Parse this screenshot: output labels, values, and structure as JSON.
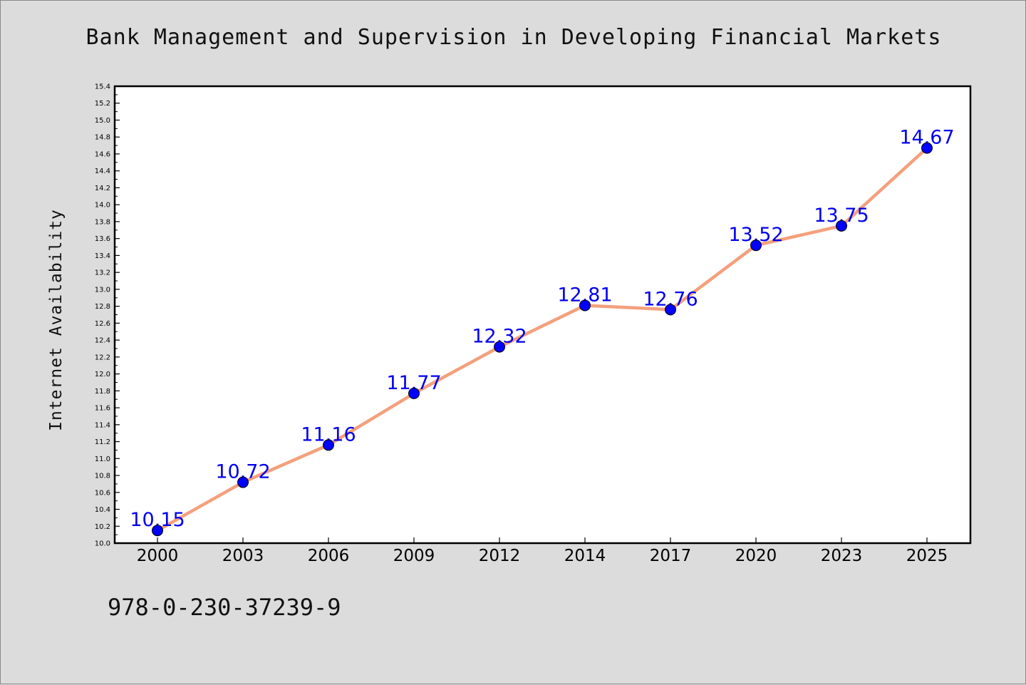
{
  "figure": {
    "isbn": "978-0-230-37239-9"
  },
  "chart_data": {
    "type": "line",
    "title": "Bank Management and Supervision in Developing Financial Markets",
    "xlabel": "",
    "ylabel": "Internet Availability",
    "x": [
      "2000",
      "2003",
      "2006",
      "2009",
      "2012",
      "2014",
      "2017",
      "2020",
      "2023",
      "2025"
    ],
    "series": [
      {
        "values": [
          10.15,
          10.72,
          11.16,
          11.77,
          12.32,
          12.81,
          12.76,
          13.52,
          13.75,
          14.67
        ],
        "line_color": "#f4a07c",
        "marker_color": "#0000ff"
      }
    ],
    "data_labels": [
      "10.15",
      "10.72",
      "11.16",
      "11.77",
      "12.32",
      "12.81",
      "12.76",
      "13.52",
      "13.75",
      "14.67"
    ],
    "ylim": [
      10.0,
      15.4
    ],
    "yticks": [
      "10.0",
      "10.2",
      "10.4",
      "10.6",
      "10.8",
      "11.0",
      "11.2",
      "11.4",
      "11.6",
      "11.8",
      "12.0",
      "12.2",
      "12.4",
      "12.6",
      "12.8",
      "13.0",
      "13.2",
      "13.4",
      "13.6",
      "13.8",
      "14.0",
      "14.2",
      "14.4",
      "14.6",
      "14.8",
      "15.0",
      "15.2",
      "15.4"
    ],
    "grid": false,
    "legend": "none"
  }
}
